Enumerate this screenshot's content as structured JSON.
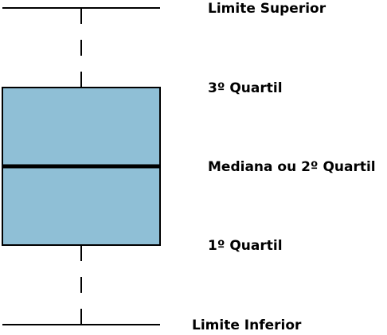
{
  "labels": {
    "upper_limit": "Limite Superior",
    "third_quartile": "3º Quartil",
    "median": "Mediana ou 2º Quartil",
    "first_quartile": "1º Quartil",
    "lower_limit": "Limite Inferior"
  },
  "colors": {
    "box_fill": "#8fbfd6",
    "stroke": "#000000",
    "background": "#ffffff"
  }
}
